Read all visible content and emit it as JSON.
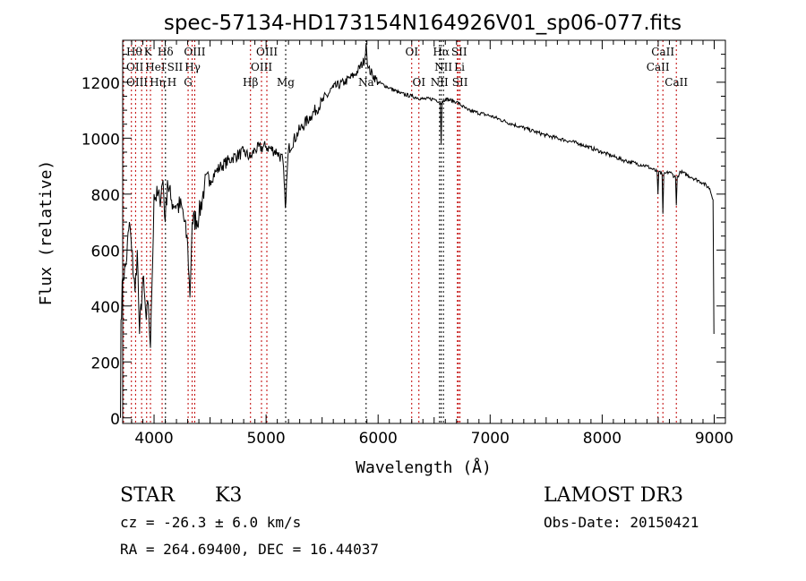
{
  "chart_data": {
    "type": "line",
    "title": "spec-57134-HD173154N164926V01_sp06-077.fits",
    "xlabel": "Wavelength (Å)",
    "ylabel": "Flux (relative)",
    "xlim": [
      3720,
      9100
    ],
    "ylim": [
      -20,
      1350
    ],
    "xticks": [
      4000,
      5000,
      6000,
      7000,
      8000,
      9000
    ],
    "yticks": [
      0,
      200,
      400,
      600,
      800,
      1000,
      1200
    ],
    "grid": false,
    "series": [
      {
        "name": "flux",
        "x": [
          3700,
          3705,
          3720,
          3750,
          3780,
          3800,
          3830,
          3850,
          3870,
          3900,
          3930,
          3950,
          3968,
          3980,
          4000,
          4050,
          4080,
          4100,
          4120,
          4150,
          4200,
          4250,
          4300,
          4320,
          4340,
          4400,
          4450,
          4500,
          4550,
          4600,
          4700,
          4800,
          4861,
          4900,
          5000,
          5100,
          5150,
          5172,
          5200,
          5300,
          5400,
          5500,
          5600,
          5700,
          5800,
          5880,
          5893,
          5910,
          6000,
          6100,
          6200,
          6300,
          6400,
          6500,
          6555,
          6563,
          6570,
          6600,
          6700,
          6800,
          7000,
          7200,
          7500,
          7800,
          8000,
          8200,
          8400,
          8490,
          8498,
          8505,
          8535,
          8542,
          8550,
          8600,
          8655,
          8662,
          8670,
          8700,
          8800,
          8900,
          8960,
          8990,
          8998
        ],
        "y": [
          0,
          350,
          500,
          550,
          700,
          600,
          450,
          600,
          300,
          500,
          350,
          400,
          250,
          450,
          800,
          780,
          850,
          700,
          850,
          780,
          760,
          750,
          620,
          430,
          700,
          720,
          830,
          850,
          880,
          900,
          930,
          950,
          930,
          960,
          970,
          950,
          920,
          750,
          960,
          1030,
          1080,
          1130,
          1180,
          1200,
          1230,
          1280,
          1340,
          1250,
          1200,
          1180,
          1160,
          1150,
          1140,
          1140,
          1130,
          980,
          1130,
          1140,
          1130,
          1100,
          1080,
          1050,
          1010,
          980,
          950,
          920,
          900,
          880,
          800,
          880,
          870,
          730,
          870,
          880,
          860,
          760,
          860,
          880,
          860,
          840,
          820,
          780,
          300
        ]
      }
    ],
    "lines": [
      {
        "label": "Hθ",
        "wl": 3798,
        "row": 0,
        "color": "#c00000"
      },
      {
        "label": "K",
        "wl": 3934,
        "row": 0,
        "color": "#c00000"
      },
      {
        "label": "Hδ",
        "wl": 4102,
        "row": 0,
        "color": "#000000"
      },
      {
        "label": "OIII",
        "wl": 4363,
        "row": 0,
        "color": "#c00000"
      },
      {
        "label": "OIII",
        "wl": 5007,
        "row": 0,
        "color": "#c00000"
      },
      {
        "label": "OI",
        "wl": 6300,
        "row": 0,
        "color": "#c00000"
      },
      {
        "label": "Hα",
        "wl": 6563,
        "row": 0,
        "color": "#000000"
      },
      {
        "label": "SII",
        "wl": 6717,
        "row": 0,
        "color": "#c00000"
      },
      {
        "label": "CaII",
        "wl": 8542,
        "row": 0,
        "color": "#c00000"
      },
      {
        "label": "OII",
        "wl": 3727,
        "row": 1,
        "color": "#c00000"
      },
      {
        "label": "HeI",
        "wl": 3889,
        "row": 1,
        "color": "#c00000"
      },
      {
        "label": "SII",
        "wl": 4072,
        "row": 1,
        "color": "#c00000"
      },
      {
        "label": "Hγ",
        "wl": 4340,
        "row": 1,
        "color": "#c00000"
      },
      {
        "label": "OIII",
        "wl": 4959,
        "row": 1,
        "color": "#c00000"
      },
      {
        "label": "NII",
        "wl": 6583,
        "row": 1,
        "color": "#000000"
      },
      {
        "label": "Li",
        "wl": 6708,
        "row": 1,
        "color": "#c00000"
      },
      {
        "label": "CaII",
        "wl": 8498,
        "row": 1,
        "color": "#c00000"
      },
      {
        "label": "OIII",
        "wl": 3727,
        "row": 2,
        "color": "#c00000"
      },
      {
        "label": "Hη",
        "wl": 3835,
        "row": 2,
        "color": "#c00000"
      },
      {
        "label": "H",
        "wl": 3968,
        "row": 2,
        "color": "#c00000"
      },
      {
        "label": "G",
        "wl": 4304,
        "row": 2,
        "color": "#c00000"
      },
      {
        "label": "Hβ",
        "wl": 4861,
        "row": 2,
        "color": "#c00000"
      },
      {
        "label": "Mg",
        "wl": 5175,
        "row": 2,
        "color": "#000000"
      },
      {
        "label": "Na",
        "wl": 5893,
        "row": 2,
        "color": "#000000"
      },
      {
        "label": "OI",
        "wl": 6364,
        "row": 2,
        "color": "#c00000"
      },
      {
        "label": "NII",
        "wl": 6548,
        "row": 2,
        "color": "#000000"
      },
      {
        "label": "SII",
        "wl": 6731,
        "row": 2,
        "color": "#c00000"
      },
      {
        "label": "CaII",
        "wl": 8662,
        "row": 2,
        "color": "#c00000"
      }
    ]
  },
  "info": {
    "class": "STAR",
    "subclass": "K3",
    "survey": "LAMOST DR3",
    "cz": "cz = -26.3 ± 6.0 km/s",
    "obs_date": "Obs-Date: 20150421",
    "coords": "RA = 264.69400, DEC =  16.44037"
  }
}
